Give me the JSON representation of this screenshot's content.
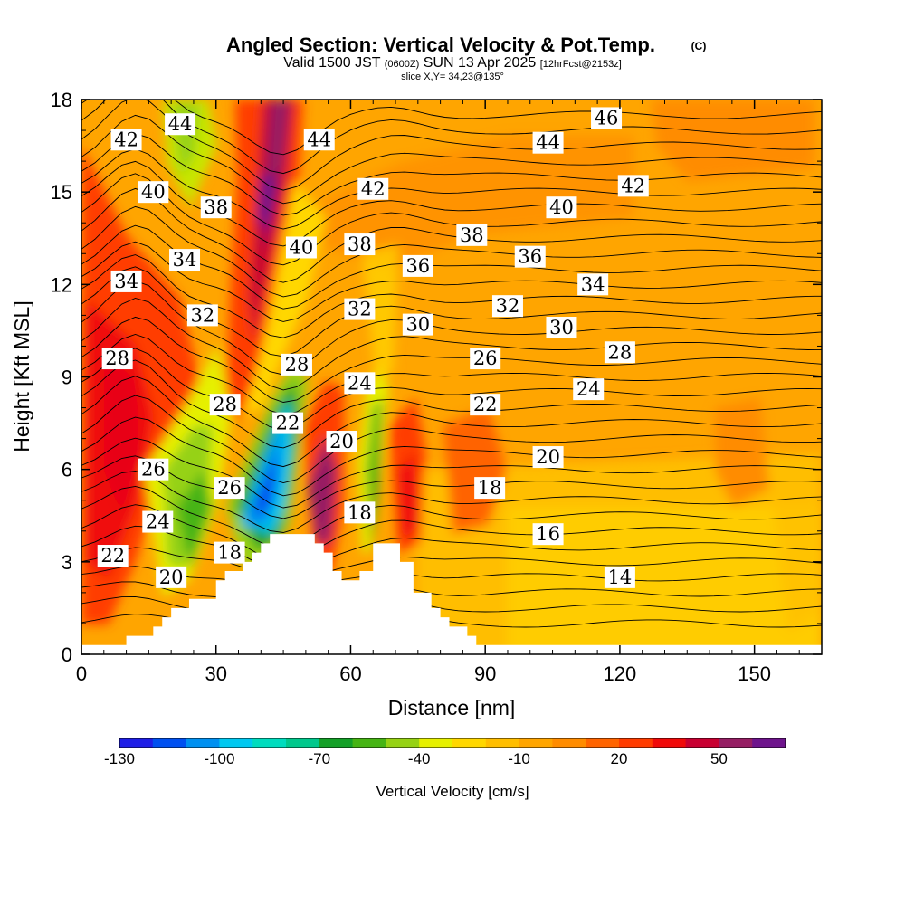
{
  "chart_data": {
    "type": "heatmap",
    "title": "Angled Section: Vertical Velocity & Pot.Temp.",
    "title_mark": "(C)",
    "subtitle_main": "Valid 1500 JST",
    "subtitle_utc": "(0600Z)",
    "subtitle_date": "SUN 13 Apr 2025",
    "subtitle_fcst": "[12hrFcst@2153z]",
    "slice_label": "slice X,Y= 34,23@135°",
    "xlabel": "Distance [nm]",
    "ylabel": "Height [Kft MSL]",
    "xlim": [
      0,
      165
    ],
    "ylim": [
      0,
      18
    ],
    "x_ticks": [
      0,
      30,
      60,
      90,
      120,
      150
    ],
    "y_ticks": [
      0,
      3,
      6,
      9,
      12,
      15,
      18
    ],
    "colorbar": {
      "label": "Vertical Velocity [cm/s]",
      "range": [
        -130,
        70
      ],
      "tick_values": [
        -130,
        -100,
        -70,
        -40,
        -10,
        20,
        50
      ],
      "colors": [
        "#1e1ee6",
        "#0050f0",
        "#0090f0",
        "#00c8f0",
        "#00dcbe",
        "#00c88c",
        "#14a028",
        "#46b414",
        "#96d214",
        "#e6f000",
        "#ffd700",
        "#ffbe00",
        "#ffa500",
        "#ff8c00",
        "#ff6400",
        "#ff3c00",
        "#f00a0a",
        "#c80032",
        "#961e64",
        "#6e148c"
      ]
    },
    "terrain": [
      [
        0,
        0.3
      ],
      [
        10,
        0.3
      ],
      [
        10,
        0.6
      ],
      [
        16,
        0.6
      ],
      [
        16,
        0.9
      ],
      [
        18,
        0.9
      ],
      [
        18,
        1.2
      ],
      [
        20,
        1.2
      ],
      [
        20,
        1.5
      ],
      [
        24,
        1.5
      ],
      [
        24,
        1.8
      ],
      [
        30,
        1.8
      ],
      [
        30,
        2.4
      ],
      [
        32,
        2.4
      ],
      [
        32,
        2.7
      ],
      [
        36,
        2.7
      ],
      [
        36,
        3.0
      ],
      [
        38,
        3.0
      ],
      [
        38,
        3.3
      ],
      [
        40,
        3.3
      ],
      [
        40,
        3.6
      ],
      [
        42,
        3.6
      ],
      [
        42,
        3.9
      ],
      [
        52,
        3.9
      ],
      [
        52,
        3.6
      ],
      [
        54,
        3.6
      ],
      [
        54,
        3.3
      ],
      [
        56,
        3.3
      ],
      [
        56,
        2.7
      ],
      [
        58,
        2.7
      ],
      [
        58,
        2.4
      ],
      [
        62,
        2.4
      ],
      [
        62,
        2.7
      ],
      [
        65,
        2.7
      ],
      [
        65,
        3.6
      ],
      [
        71,
        3.6
      ],
      [
        71,
        3.0
      ],
      [
        74,
        3.0
      ],
      [
        74,
        2.0
      ],
      [
        78,
        2.0
      ],
      [
        78,
        1.5
      ],
      [
        80,
        1.5
      ],
      [
        80,
        1.2
      ],
      [
        82,
        1.2
      ],
      [
        82,
        0.9
      ],
      [
        86,
        0.9
      ],
      [
        86,
        0.6
      ],
      [
        88,
        0.6
      ],
      [
        88,
        0.3
      ],
      [
        165,
        0.3
      ]
    ],
    "theta_contour_labels": [
      {
        "text": "46",
        "x": 117,
        "y": 17.4
      },
      {
        "text": "44",
        "x": 22,
        "y": 17.2
      },
      {
        "text": "44",
        "x": 53,
        "y": 16.7
      },
      {
        "text": "44",
        "x": 104,
        "y": 16.6
      },
      {
        "text": "42",
        "x": 10,
        "y": 16.7
      },
      {
        "text": "42",
        "x": 65,
        "y": 15.1
      },
      {
        "text": "42",
        "x": 123,
        "y": 15.2
      },
      {
        "text": "40",
        "x": 16,
        "y": 15.0
      },
      {
        "text": "40",
        "x": 107,
        "y": 14.5
      },
      {
        "text": "40",
        "x": 49,
        "y": 13.2
      },
      {
        "text": "38",
        "x": 30,
        "y": 14.5
      },
      {
        "text": "38",
        "x": 62,
        "y": 13.3
      },
      {
        "text": "38",
        "x": 87,
        "y": 13.6
      },
      {
        "text": "36",
        "x": 75,
        "y": 12.6
      },
      {
        "text": "36",
        "x": 100,
        "y": 12.9
      },
      {
        "text": "34",
        "x": 10,
        "y": 12.1
      },
      {
        "text": "34",
        "x": 23,
        "y": 12.8
      },
      {
        "text": "34",
        "x": 114,
        "y": 12.0
      },
      {
        "text": "32",
        "x": 27,
        "y": 11.0
      },
      {
        "text": "32",
        "x": 62,
        "y": 11.2
      },
      {
        "text": "32",
        "x": 95,
        "y": 11.3
      },
      {
        "text": "30",
        "x": 75,
        "y": 10.7
      },
      {
        "text": "30",
        "x": 107,
        "y": 10.6
      },
      {
        "text": "28",
        "x": 8,
        "y": 9.6
      },
      {
        "text": "28",
        "x": 48,
        "y": 9.4
      },
      {
        "text": "28",
        "x": 32,
        "y": 8.1
      },
      {
        "text": "28",
        "x": 120,
        "y": 9.8
      },
      {
        "text": "26",
        "x": 90,
        "y": 9.6
      },
      {
        "text": "26",
        "x": 16,
        "y": 6.0
      },
      {
        "text": "26",
        "x": 33,
        "y": 5.4
      },
      {
        "text": "24",
        "x": 62,
        "y": 8.8
      },
      {
        "text": "24",
        "x": 113,
        "y": 8.6
      },
      {
        "text": "24",
        "x": 17,
        "y": 4.3
      },
      {
        "text": "22",
        "x": 90,
        "y": 8.1
      },
      {
        "text": "22",
        "x": 46,
        "y": 7.5
      },
      {
        "text": "22",
        "x": 7,
        "y": 3.2
      },
      {
        "text": "20",
        "x": 58,
        "y": 6.9
      },
      {
        "text": "20",
        "x": 104,
        "y": 6.4
      },
      {
        "text": "20",
        "x": 20,
        "y": 2.5
      },
      {
        "text": "18",
        "x": 91,
        "y": 5.4
      },
      {
        "text": "18",
        "x": 62,
        "y": 4.6
      },
      {
        "text": "18",
        "x": 33,
        "y": 3.3
      },
      {
        "text": "16",
        "x": 104,
        "y": 3.9
      },
      {
        "text": "14",
        "x": 120,
        "y": 2.5
      }
    ]
  }
}
